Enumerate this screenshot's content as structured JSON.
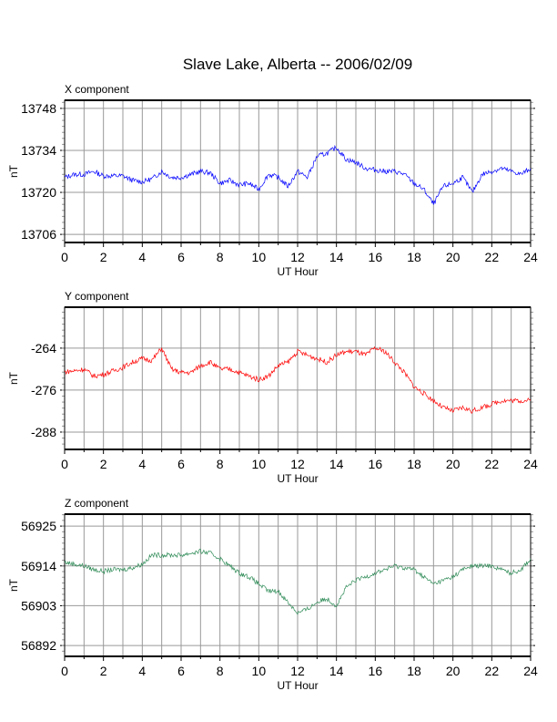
{
  "chart_data": {
    "type": "line",
    "title": "Slave Lake, Alberta -- 2006/02/09",
    "panels": [
      {
        "name": "X component",
        "xlabel": "UT Hour",
        "ylabel": "nT",
        "xlim": [
          0,
          24
        ],
        "ylim": [
          13703.3,
          13750.7
        ],
        "xticks": [
          0,
          2,
          4,
          6,
          8,
          10,
          12,
          14,
          16,
          18,
          20,
          22,
          24
        ],
        "yticks": [
          13706,
          13720,
          13734,
          13748
        ],
        "color": "#0000ff",
        "x_step": 0.5,
        "values": [
          13725,
          13726,
          13726,
          13727,
          13725.5,
          13725.5,
          13725.5,
          13724,
          13723.5,
          13724.5,
          13727,
          13725,
          13725,
          13726,
          13727,
          13726.5,
          13723,
          13724,
          13722.5,
          13723,
          13721,
          13726,
          13725,
          13722,
          13727,
          13725,
          13732,
          13733,
          13735,
          13731,
          13730,
          13728,
          13727.5,
          13727,
          13727,
          13726,
          13723,
          13721,
          13716,
          13722,
          13723,
          13725,
          13720,
          13726,
          13727,
          13728,
          13727,
          13726,
          13728
        ]
      },
      {
        "name": "Y component",
        "xlabel": "UT Hour",
        "ylabel": "nT",
        "xlim": [
          0,
          24
        ],
        "ylim": [
          -292.96,
          -252.3
        ],
        "xticks": [
          0,
          2,
          4,
          6,
          8,
          10,
          12,
          14,
          16,
          18,
          20,
          22,
          24
        ],
        "yticks": [
          -264,
          -276,
          -288
        ],
        "color": "#ff0000",
        "x_step": 0.5,
        "values": [
          -270.8,
          -270.5,
          -270,
          -272,
          -271.5,
          -270.5,
          -269.5,
          -268,
          -267,
          -267.5,
          -264,
          -270,
          -271,
          -271,
          -269,
          -268,
          -270,
          -270,
          -271,
          -272,
          -273,
          -272,
          -269,
          -268,
          -265,
          -266,
          -267,
          -268,
          -266,
          -265,
          -265,
          -266,
          -264,
          -265,
          -268,
          -271,
          -275,
          -277,
          -279,
          -281,
          -282,
          -281,
          -282,
          -281,
          -280,
          -279,
          -279,
          -279,
          -279
        ]
      },
      {
        "name": "Z component",
        "xlabel": "UT Hour",
        "ylabel": "nT",
        "xlim": [
          0,
          24
        ],
        "ylim": [
          56889,
          56928.3
        ],
        "xticks": [
          0,
          2,
          4,
          6,
          8,
          10,
          12,
          14,
          16,
          18,
          20,
          22,
          24
        ],
        "yticks": [
          56892,
          56903,
          56914,
          56925
        ],
        "color": "#2e8b57",
        "x_step": 0.5,
        "values": [
          56915,
          56914.5,
          56914,
          56913,
          56912.5,
          56913,
          56913,
          56913.5,
          56914.5,
          56917,
          56917,
          56917,
          56917,
          56917.5,
          56918,
          56917.5,
          56916,
          56914,
          56912,
          56911,
          56909,
          56907,
          56907,
          56904,
          56901,
          56902,
          56904,
          56905,
          56903,
          56908,
          56910,
          56911,
          56912,
          56913,
          56914,
          56913.5,
          56913,
          56911,
          56909,
          56910,
          56911,
          56913,
          56914,
          56914,
          56914,
          56913,
          56912,
          56913,
          56916
        ]
      }
    ]
  }
}
